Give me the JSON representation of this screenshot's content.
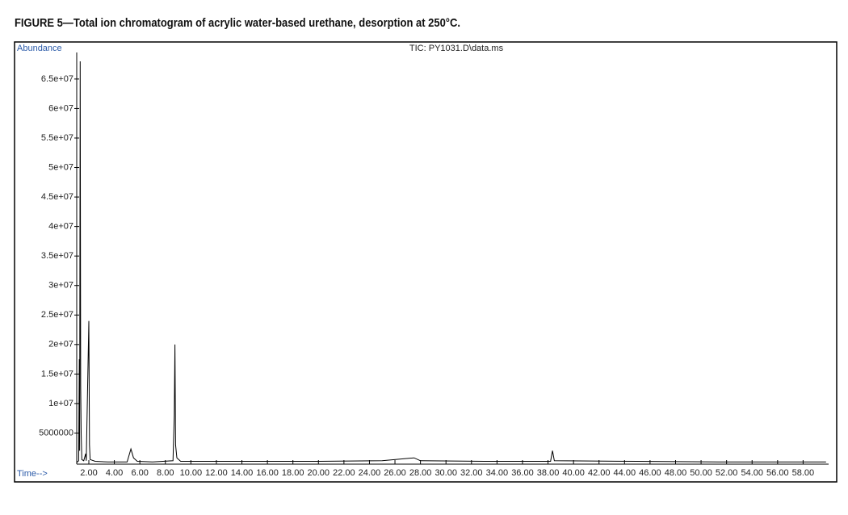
{
  "chart_data": {
    "type": "line",
    "title": "FIGURE 5—Total ion chromatogram of acrylic water-based urethane, desorption at 250°C.",
    "annotation": "TIC: PY1031.D\\data.ms",
    "y_label": "Abundance",
    "x_label": "Time-->",
    "x": [
      1.05,
      1.2,
      1.25,
      1.28,
      1.32,
      1.36,
      1.4,
      1.45,
      1.6,
      1.75,
      1.8,
      2.0,
      2.05,
      2.1,
      2.5,
      3.5,
      5.0,
      5.3,
      5.5,
      5.8,
      7.0,
      8.6,
      8.7,
      8.75,
      8.8,
      8.9,
      9.2,
      12,
      15,
      20,
      25,
      27.5,
      28,
      33,
      38.2,
      38.35,
      38.5,
      45,
      52,
      59.8
    ],
    "series": [
      {
        "color": "#000000",
        "values": [
          0,
          300000,
          17500000,
          2000000,
          68000000,
          13000000,
          5000000,
          500000,
          300000,
          1500000,
          300000,
          24000000,
          3000000,
          500000,
          200000,
          100000,
          100000,
          2300000,
          800000,
          200000,
          100000,
          300000,
          8000000,
          20000000,
          3000000,
          800000,
          200000,
          200000,
          200000,
          200000,
          300000,
          800000,
          300000,
          200000,
          200000,
          2000000,
          300000,
          200000,
          100000,
          100000
        ]
      }
    ],
    "xlim": [
      1.05,
      60
    ],
    "ylim": [
      0,
      69500000
    ],
    "xticks": [
      {
        "value": 2,
        "label": "2.00"
      },
      {
        "value": 4,
        "label": "4.00"
      },
      {
        "value": 6,
        "label": "6.00"
      },
      {
        "value": 8,
        "label": "8.00"
      },
      {
        "value": 10,
        "label": "10.00"
      },
      {
        "value": 12,
        "label": "12.00"
      },
      {
        "value": 14,
        "label": "14.00"
      },
      {
        "value": 16,
        "label": "16.00"
      },
      {
        "value": 18,
        "label": "18.00"
      },
      {
        "value": 20,
        "label": "20.00"
      },
      {
        "value": 22,
        "label": "22.00"
      },
      {
        "value": 24,
        "label": "24.00"
      },
      {
        "value": 26,
        "label": "26.00"
      },
      {
        "value": 28,
        "label": "28.00"
      },
      {
        "value": 30,
        "label": "30.00"
      },
      {
        "value": 32,
        "label": "32.00"
      },
      {
        "value": 34,
        "label": "34.00"
      },
      {
        "value": 36,
        "label": "36.00"
      },
      {
        "value": 38,
        "label": "38.00"
      },
      {
        "value": 40,
        "label": "40.00"
      },
      {
        "value": 42,
        "label": "42.00"
      },
      {
        "value": 44,
        "label": "44.00"
      },
      {
        "value": 46,
        "label": "46.00"
      },
      {
        "value": 48,
        "label": "48.00"
      },
      {
        "value": 50,
        "label": "50.00"
      },
      {
        "value": 52,
        "label": "52.00"
      },
      {
        "value": 54,
        "label": "54.00"
      },
      {
        "value": 56,
        "label": "56.00"
      },
      {
        "value": 58,
        "label": "58.00"
      }
    ],
    "yticks": [
      5000000,
      {
        "value": 10000000,
        "label": "1e+07"
      },
      {
        "value": 15000000,
        "label": "1.5e+07"
      },
      {
        "value": 20000000,
        "label": "2e+07"
      },
      {
        "value": 25000000,
        "label": "2.5e+07"
      },
      {
        "value": 30000000,
        "label": "3e+07"
      },
      {
        "value": 35000000,
        "label": "3.5e+07"
      },
      {
        "value": 40000000,
        "label": "4e+07"
      },
      {
        "value": 45000000,
        "label": "4.5e+07"
      },
      {
        "value": 50000000,
        "label": "5e+07"
      },
      {
        "value": 55000000,
        "label": "5.5e+07"
      },
      {
        "value": 60000000,
        "label": "6e+07"
      },
      {
        "value": 65000000,
        "label": "6.5e+07"
      }
    ]
  }
}
